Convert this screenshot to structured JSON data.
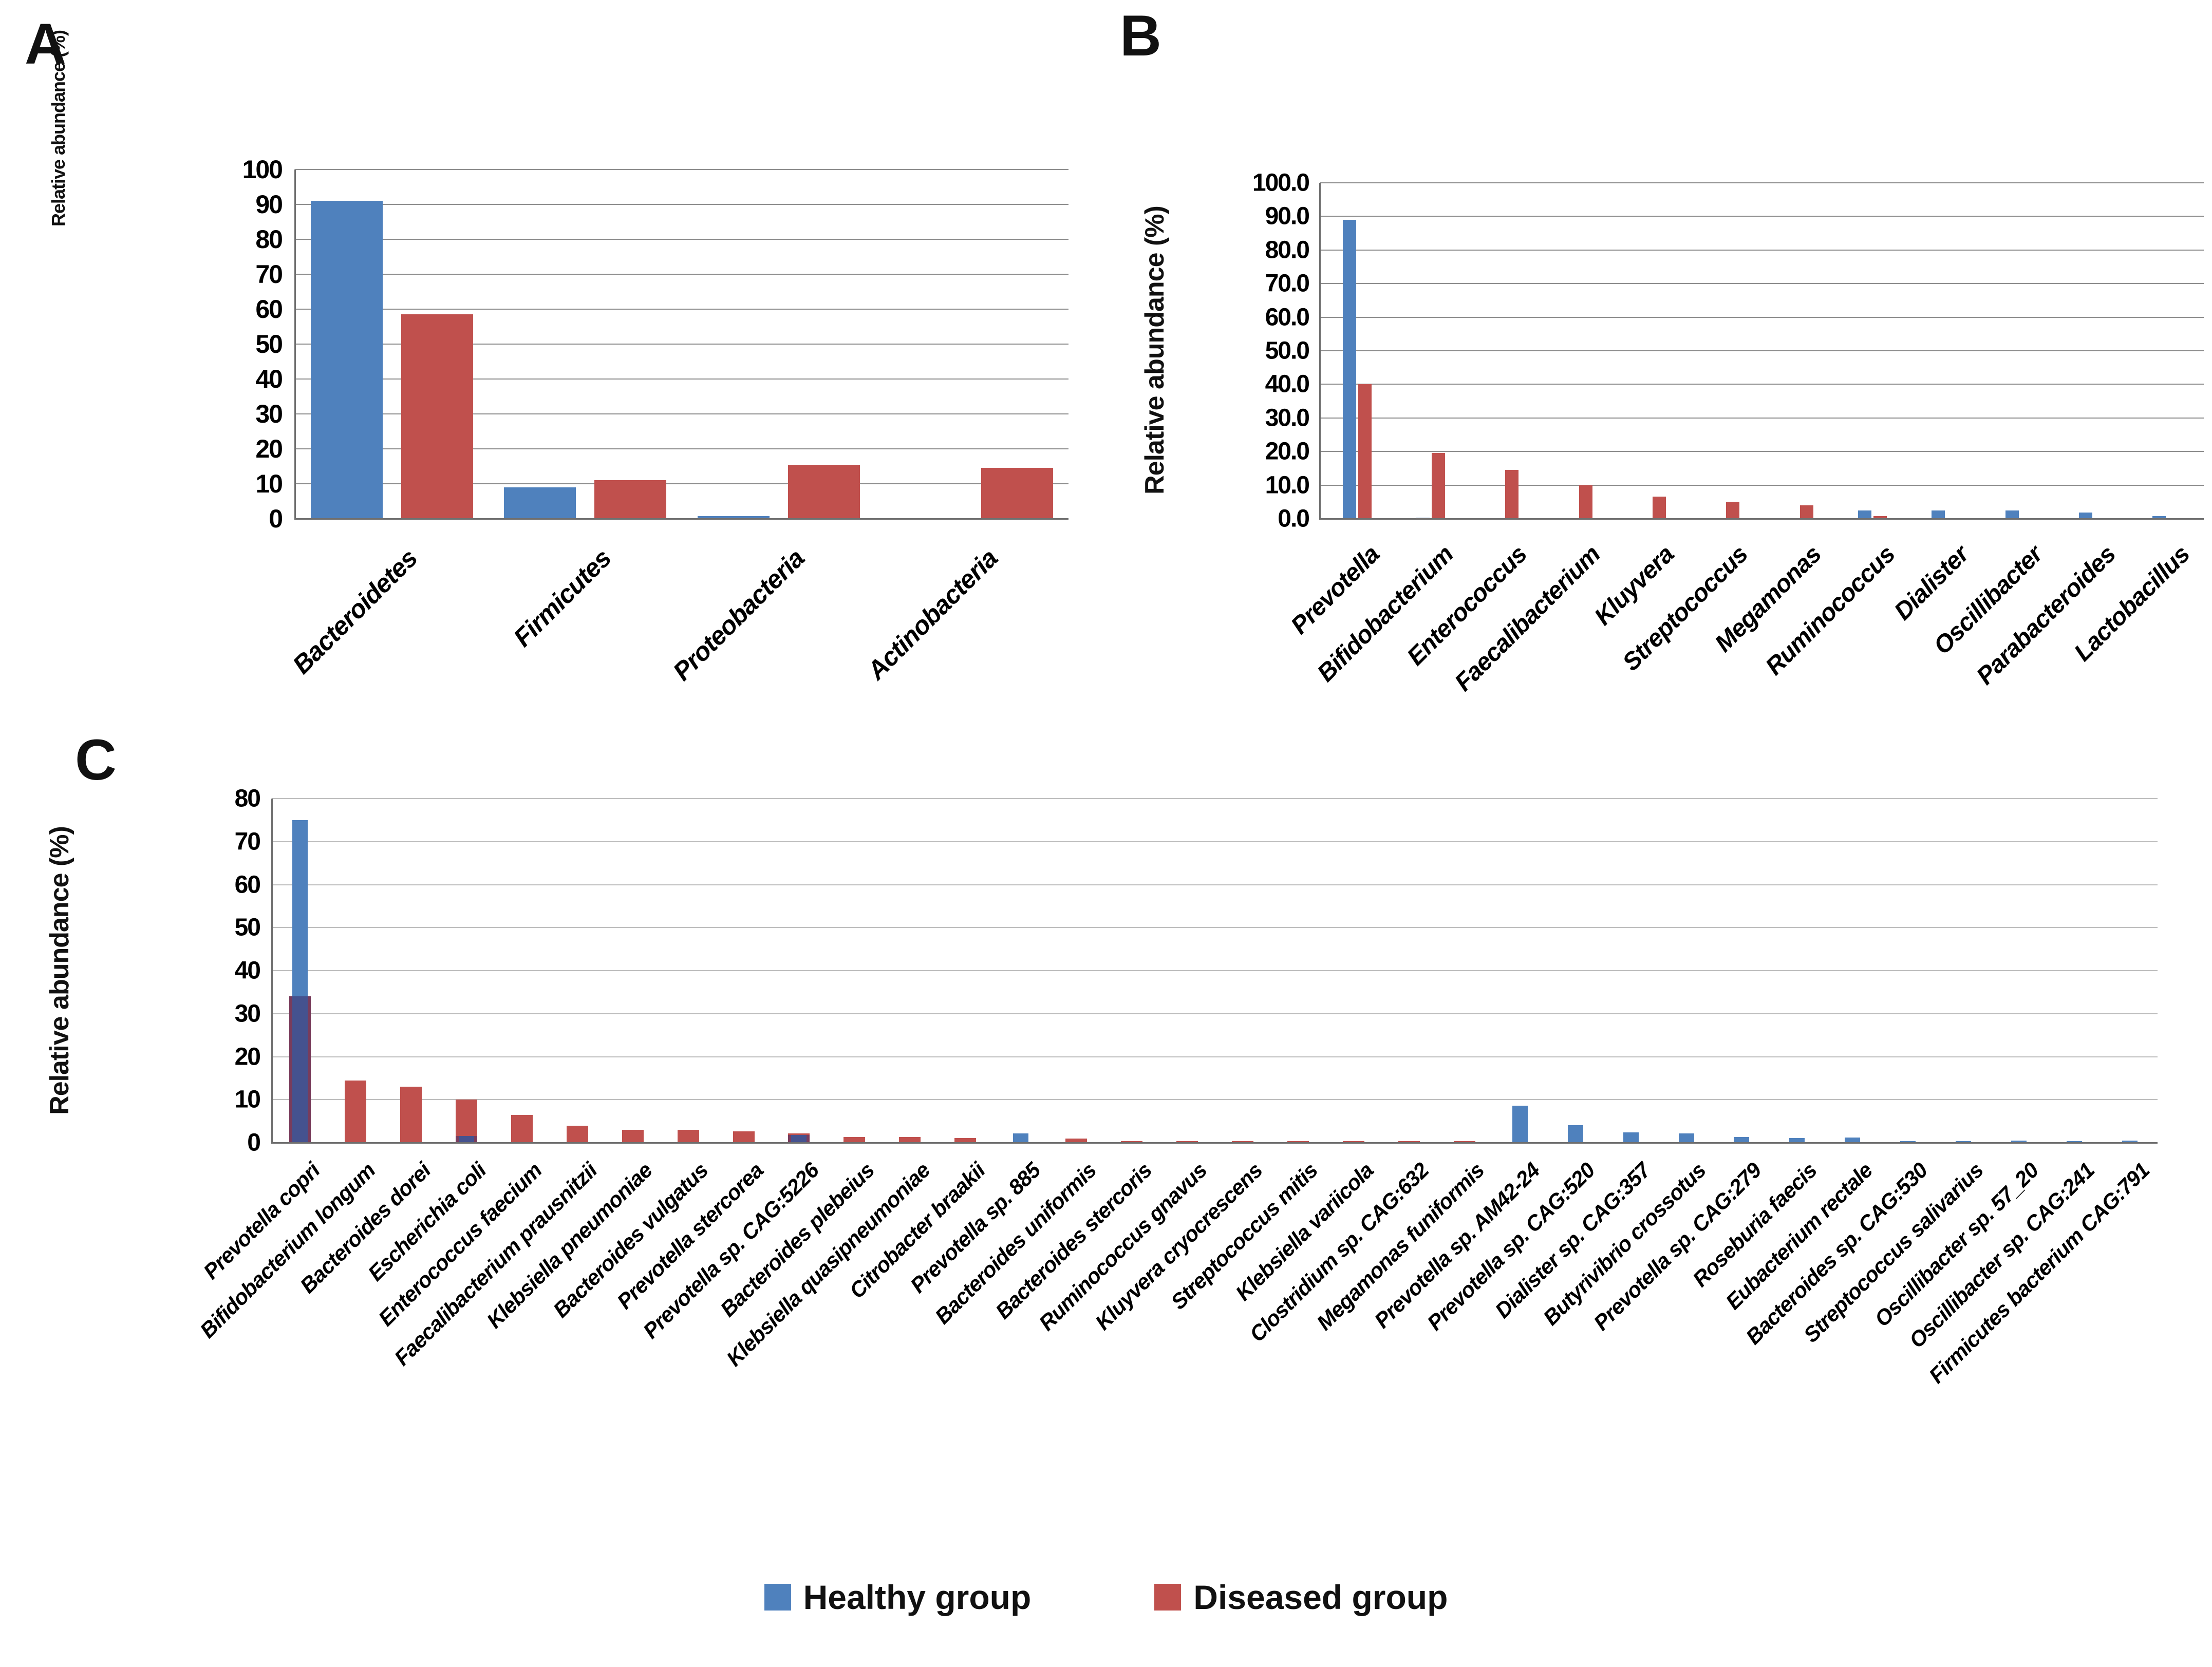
{
  "figure": {
    "kind": "three-panel bar figure",
    "background": "#ffffff"
  },
  "panels": {
    "a_label": "A",
    "b_label": "B",
    "c_label": "C"
  },
  "legend": {
    "position": "bottom-center",
    "healthy_label": "Healthy group",
    "diseased_label": "Diseased group"
  },
  "colors": {
    "healthy": "#4F81BD",
    "diseased": "#C0504D",
    "overlap_tint": "rgba(62,44,105,0.55)",
    "gridline": "#8d8d8d",
    "gridline_light": "#bdbdbd",
    "axis": "#6f6f6f"
  },
  "chart_data": [
    {
      "id": "A",
      "type": "bar",
      "title": "",
      "xlabel": "",
      "ylabel": "Relative abundance (%)",
      "ylim": [
        0,
        100
      ],
      "ytick_step": 10,
      "ytick_decimals": 0,
      "grid": true,
      "bar_mode": "grouped",
      "legend_position": "shared-bottom",
      "categories": [
        "Bacteroidetes",
        "Firmicutes",
        "Proteobacteria",
        "Actinobacteria"
      ],
      "series": [
        {
          "name": "Healthy group",
          "color_key": "healthy",
          "values": [
            91,
            9,
            0.7,
            0.2
          ]
        },
        {
          "name": "Diseased group",
          "color_key": "diseased",
          "values": [
            58.5,
            11,
            15.5,
            14.5
          ]
        }
      ]
    },
    {
      "id": "B",
      "type": "bar",
      "title": "",
      "xlabel": "",
      "ylabel": "Relative abundance (%)",
      "ylim": [
        0,
        100
      ],
      "ytick_step": 10,
      "ytick_decimals": 1,
      "grid": true,
      "bar_mode": "grouped",
      "legend_position": "shared-bottom",
      "categories": [
        "Prevotella",
        "Bifidobacterium",
        "Enterococcus",
        "Faecalibacterium",
        "Kluyvera",
        "Streptococcus",
        "Megamonas",
        "Ruminococcus",
        "Dialister",
        "Oscillibacter",
        "Parabacteroides",
        "Lactobacillus"
      ],
      "series": [
        {
          "name": "Healthy group",
          "color_key": "healthy",
          "values": [
            89,
            0.3,
            0.2,
            0.2,
            0.1,
            0.1,
            0.1,
            2.5,
            2.5,
            2.4,
            1.8,
            0.8
          ]
        },
        {
          "name": "Diseased group",
          "color_key": "diseased",
          "values": [
            40,
            19.5,
            14.5,
            10,
            6.5,
            5,
            4,
            0.7,
            0.2,
            0.1,
            0.1,
            0.1
          ]
        }
      ]
    },
    {
      "id": "C",
      "type": "bar",
      "title": "",
      "xlabel": "",
      "ylabel": "Relative abundance (%)",
      "ylim": [
        0,
        80
      ],
      "ytick_step": 10,
      "ytick_decimals": 0,
      "grid": true,
      "bar_mode": "overlap",
      "legend_position": "shared-bottom",
      "categories": [
        "Prevotella copri",
        "Bifidobacterium longum",
        "Bacteroides dorei",
        "Escherichia coli",
        "Enterococcus faecium",
        "Faecalibacterium prausnitzii",
        "Klebsiella pneumoniae",
        "Bacteroides vulgatus",
        "Prevotella stercorea",
        "Prevotella sp. CAG:5226",
        "Bacteroides plebeius",
        "Klebsiella quasipneumoniae",
        "Citrobacter braakii",
        "Prevotella sp. 885",
        "Bacteroides uniformis",
        "Bacteroides stercoris",
        "Ruminococcus gnavus",
        "Kluyvera cryocrescens",
        "Streptococcus mitis",
        "Klebsiella variicola",
        "Clostridium sp. CAG:632",
        "Megamonas funiformis",
        "Prevotella sp. AM42-24",
        "Prevotella sp. CAG:520",
        "Dialister sp. CAG:357",
        "Butyrivibrio crossotus",
        "Prevotella sp. CAG:279",
        "Roseburia faecis",
        "Eubacterium rectale",
        "Bacteroides sp. CAG:530",
        "Streptococcus salivarius",
        "Oscillibacter sp. 57_20",
        "Oscillibacter sp. CAG:241",
        "Firmicutes bacterium CAG:791"
      ],
      "series": [
        {
          "name": "Healthy group",
          "color_key": "healthy",
          "values": [
            75,
            0,
            0,
            1.5,
            0,
            0,
            0,
            0,
            0,
            1.8,
            0,
            0,
            0,
            2.2,
            0,
            0,
            0,
            0,
            0,
            0,
            0,
            0,
            8.6,
            4.1,
            2.4,
            2.1,
            1.3,
            1.1,
            1.2,
            0.4,
            0.4,
            0.45,
            0.4,
            0.45
          ]
        },
        {
          "name": "Diseased group",
          "color_key": "diseased",
          "values": [
            34,
            14.5,
            13,
            10,
            6.5,
            4,
            3,
            3,
            2.6,
            2.2,
            1.3,
            1.3,
            1.1,
            0,
            0.9,
            0.4,
            0.4,
            0.4,
            0.35,
            0.35,
            0.35,
            0.4,
            0,
            0,
            0,
            0,
            0,
            0,
            0,
            0,
            0,
            0,
            0,
            0
          ]
        }
      ]
    }
  ]
}
